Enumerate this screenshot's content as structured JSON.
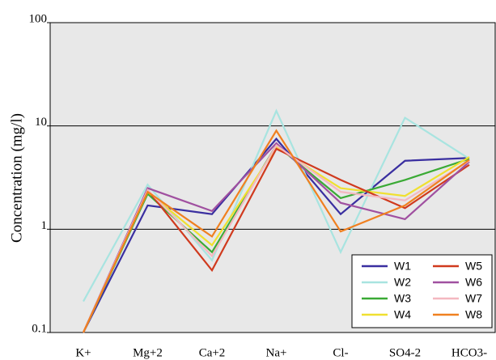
{
  "chart_data": {
    "type": "line",
    "ylabel": "Concentration (mg/l)",
    "categories": [
      "K+",
      "Mg+2",
      "Ca+2",
      "Na+",
      "Cl-",
      "SO4-2",
      "HCO3-"
    ],
    "series": [
      {
        "name": "W1",
        "color": "#3a2fa0",
        "values": [
          0.1,
          1.7,
          1.4,
          7.5,
          1.4,
          4.6,
          4.9
        ]
      },
      {
        "name": "W2",
        "color": "#a8e4e0",
        "values": [
          0.2,
          2.7,
          0.5,
          14,
          0.6,
          12,
          4.8
        ]
      },
      {
        "name": "W3",
        "color": "#3aaa35",
        "values": [
          0.1,
          2.2,
          0.6,
          6.5,
          2.0,
          3.0,
          4.8
        ]
      },
      {
        "name": "W4",
        "color": "#f0e030",
        "values": [
          0.1,
          2.3,
          0.7,
          6.2,
          2.5,
          2.1,
          5.0
        ]
      },
      {
        "name": "W5",
        "color": "#d03a1e",
        "values": [
          0.1,
          2.4,
          0.4,
          6.0,
          3.0,
          1.6,
          4.2
        ]
      },
      {
        "name": "W6",
        "color": "#a050a0",
        "values": [
          0.1,
          2.5,
          1.5,
          6.8,
          1.8,
          1.25,
          4.5
        ]
      },
      {
        "name": "W7",
        "color": "#f4b8c0",
        "values": [
          0.1,
          2.4,
          0.55,
          6.5,
          2.3,
          1.9,
          4.6
        ]
      },
      {
        "name": "W8",
        "color": "#f08020",
        "values": [
          0.1,
          2.3,
          0.85,
          9.0,
          0.95,
          1.7,
          4.7
        ]
      }
    ],
    "ylim": [
      0.1,
      100
    ],
    "yticks": [
      0.1,
      1,
      10,
      100
    ],
    "log_y": true,
    "grid": true,
    "legend": "lower right"
  }
}
